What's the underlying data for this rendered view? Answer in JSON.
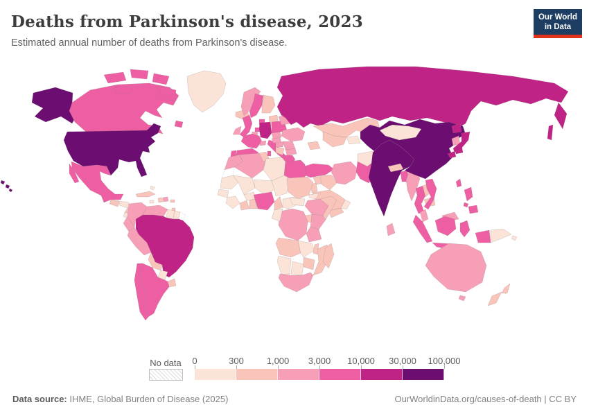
{
  "header": {
    "title": "Deaths from Parkinson's disease, 2023",
    "subtitle": "Estimated annual number of deaths from Parkinson's disease."
  },
  "logo": {
    "line1": "Our World",
    "line2": "in Data",
    "bg_color": "#1d3d63",
    "accent_color": "#e0311c"
  },
  "legend": {
    "no_data_label": "No data",
    "tick_labels": [
      "0",
      "300",
      "1,000",
      "3,000",
      "10,000",
      "30,000",
      "100,000"
    ],
    "bin_colors": [
      "#fce3d7",
      "#f9c4b9",
      "#f79fb7",
      "#ee5ea3",
      "#c02386",
      "#6c0d72"
    ]
  },
  "footer": {
    "source_label": "Data source:",
    "source_value": " IHME, Global Burden of Disease (2025)",
    "right_text": "OurWorldinData.org/causes-of-death | CC BY"
  },
  "chart_data": {
    "type": "choropleth-world-map",
    "title": "Deaths from Parkinson's disease, 2023",
    "unit": "deaths",
    "scale_type": "log-binned",
    "bin_edges": [
      0,
      300,
      1000,
      3000,
      10000,
      30000,
      100000
    ],
    "bin_labels": [
      "0-300",
      "300-1,000",
      "1,000-3,000",
      "3,000-10,000",
      "10,000-30,000",
      "30,000-100,000"
    ],
    "no_data": "hatched",
    "countries": {
      "United States": 5,
      "Canada": 3,
      "Greenland": 0,
      "Iceland": 1,
      "Mexico": 3,
      "Guatemala": 1,
      "Honduras": 0,
      "Nicaragua": 1,
      "Costa Rica": 0,
      "Panama": 1,
      "Cuba": 1,
      "Jamaica": 0,
      "Haiti": 1,
      "Dominican Republic": 2,
      "Puerto Rico": 1,
      "Bahamas": 0,
      "Trinidad and Tobago": 1,
      "Colombia": 2,
      "Venezuela": 2,
      "Guyana": 0,
      "Suriname": 0,
      "French Guiana": "no-data",
      "Ecuador": 2,
      "Peru": 2,
      "Brazil": 4,
      "Bolivia": 1,
      "Paraguay": 0,
      "Uruguay": 1,
      "Argentina": 3,
      "Chile": 3,
      "United Kingdom": 3,
      "Ireland": 2,
      "Norway": 2,
      "Sweden": 3,
      "Finland": 1,
      "Denmark": 3,
      "Netherlands": 3,
      "Belgium": 2,
      "Germany": 4,
      "France": 3,
      "Spain": 3,
      "Portugal": 3,
      "Italy": 3,
      "Switzerland": 2,
      "Austria": 2,
      "Czechia": 2,
      "Poland": 3,
      "Baltics": 1,
      "Belarus": 2,
      "Ukraine": 2,
      "Romania": 2,
      "Hungary": 2,
      "Bulgaria": 2,
      "Balkans": 1,
      "Greece": 3,
      "Russia": 4,
      "Turkey": 3,
      "Syria": 1,
      "Iraq": 1,
      "Iran": 2,
      "Levant": 1,
      "Saudi Arabia": 1,
      "Yemen": 1,
      "Oman": 0,
      "Caucasus": 1,
      "Kazakhstan": 1,
      "Uzbekistan": 1,
      "Kyrgyzstan": 0,
      "Afghanistan": 0,
      "Pakistan": 3,
      "India": 5,
      "Nepal": 1,
      "Bangladesh": 3,
      "Sri Lanka": 2,
      "Myanmar": 2,
      "Thailand": 3,
      "Laos": 1,
      "Cambodia": 1,
      "Vietnam": 3,
      "Malaysia": 2,
      "Indonesia": 3,
      "Timor": 0,
      "Philippines": 3,
      "Taiwan": 3,
      "China": 5,
      "Mongolia": 0,
      "North Korea": 2,
      "South Korea": 4,
      "Japan": 4,
      "Morocco": 2,
      "Western Sahara": "no-data",
      "Algeria": 2,
      "Tunisia": 1,
      "Libya": 0,
      "Egypt": 3,
      "Mauritania": 0,
      "Senegal": 0,
      "Mali": 0,
      "Guinea": 0,
      "Cote d'Ivoire": 1,
      "Burkina Faso": 0,
      "Ghana": 1,
      "Benin": 0,
      "Niger": 0,
      "Nigeria": 3,
      "Chad": 0,
      "Cameroon": 1,
      "Central African Republic": 0,
      "Congo": 0,
      "Sudan": 1,
      "Eritrea": 0,
      "South Sudan": 0,
      "Ethiopia": 2,
      "Somalia": 1,
      "Uganda": 1,
      "Kenya": 2,
      "Democratic Republic of Congo": 2,
      "Tanzania": 2,
      "Angola": 1,
      "Zambia": 0,
      "Malawi": 1,
      "Mozambique": 1,
      "Zimbabwe": 1,
      "Botswana": 0,
      "Namibia": 0,
      "South Africa": 2,
      "Madagascar": 1,
      "Australia": 2,
      "New Zealand": 1,
      "Papua New Guinea": 0
    }
  }
}
